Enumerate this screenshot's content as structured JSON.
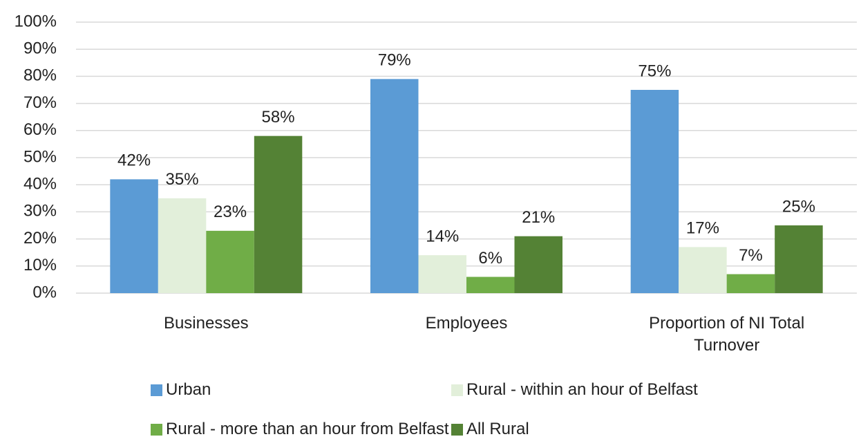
{
  "chart_data": {
    "type": "bar",
    "categories": [
      "Businesses",
      "Employees",
      "Proportion of NI Total Turnover"
    ],
    "series": [
      {
        "name": "Urban",
        "color": "#5b9bd5",
        "values": [
          42,
          79,
          75
        ],
        "value_labels": [
          "42%",
          "79%",
          "75%"
        ]
      },
      {
        "name": "Rural - within an hour of Belfast",
        "color": "#e2efda",
        "values": [
          35,
          14,
          17
        ],
        "value_labels": [
          "35%",
          "14%",
          "17%"
        ]
      },
      {
        "name": "Rural - more than an hour from Belfast",
        "color": "#70ad47",
        "values": [
          23,
          6,
          7
        ],
        "value_labels": [
          "23%",
          "6%",
          "7%"
        ]
      },
      {
        "name": "All Rural",
        "color": "#548235",
        "values": [
          58,
          21,
          25
        ],
        "value_labels": [
          "58%",
          "21%",
          "25%"
        ]
      }
    ],
    "ylim": [
      0,
      100
    ],
    "yticks": [
      {
        "value": 0,
        "label": "0%"
      },
      {
        "value": 10,
        "label": "10%"
      },
      {
        "value": 20,
        "label": "20%"
      },
      {
        "value": 30,
        "label": "30%"
      },
      {
        "value": 40,
        "label": "40%"
      },
      {
        "value": 50,
        "label": "50%"
      },
      {
        "value": 60,
        "label": "60%"
      },
      {
        "value": 70,
        "label": "70%"
      },
      {
        "value": 80,
        "label": "80%"
      },
      {
        "value": 90,
        "label": "90%"
      },
      {
        "value": 100,
        "label": "100%"
      }
    ],
    "grid": true,
    "legend": "bottom"
  }
}
